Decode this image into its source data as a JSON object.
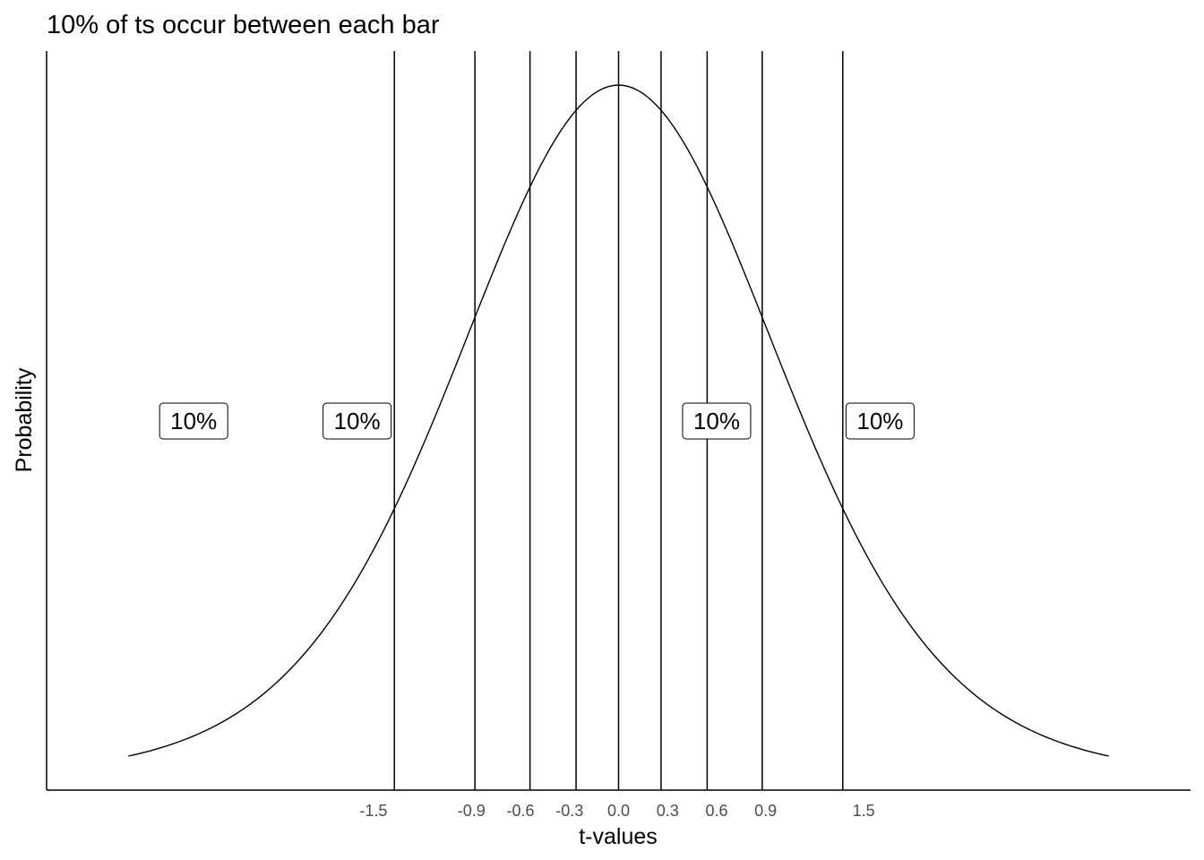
{
  "chart_data": {
    "type": "line",
    "title": "10% of ts occur between each bar",
    "xlabel": "t-values",
    "ylabel": "Probability",
    "xlim": [
      -3.5,
      3.5
    ],
    "x_range_curve": [
      -3.0,
      3.0
    ],
    "df": 10,
    "xticks": [
      {
        "value": -1.5,
        "label": "-1.5"
      },
      {
        "value": -0.9,
        "label": "-0.9"
      },
      {
        "value": -0.6,
        "label": "-0.6"
      },
      {
        "value": -0.3,
        "label": "-0.3"
      },
      {
        "value": 0.0,
        "label": "0.0"
      },
      {
        "value": 0.3,
        "label": "0.3"
      },
      {
        "value": 0.6,
        "label": "0.6"
      },
      {
        "value": 0.9,
        "label": "0.9"
      },
      {
        "value": 1.5,
        "label": "1.5"
      }
    ],
    "vlines": [
      -1.372,
      -0.879,
      -0.542,
      -0.26,
      0.0,
      0.26,
      0.542,
      0.879,
      1.372
    ],
    "annotations": [
      {
        "x": -2.6,
        "y": 0.2,
        "label": "10%"
      },
      {
        "x": -1.6,
        "y": 0.2,
        "label": "10%"
      },
      {
        "x": 0.6,
        "y": 0.2,
        "label": "10%"
      },
      {
        "x": 1.6,
        "y": 0.2,
        "label": "10%"
      }
    ],
    "grid": false
  }
}
